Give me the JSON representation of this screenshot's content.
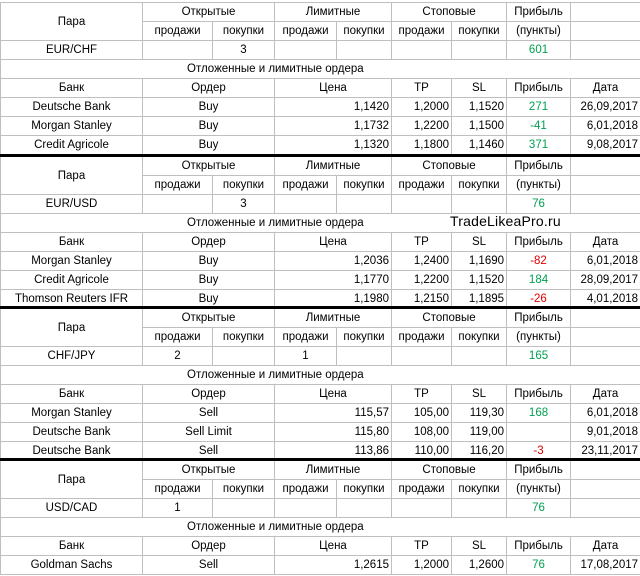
{
  "watermark": "TradeLikeaPro.ru",
  "headers": {
    "pair": "Пара",
    "open": "Открытые",
    "limit": "Лимитные",
    "stop": "Стоповые",
    "profit": "Прибыль",
    "sells": "продажи",
    "buys": "покупки",
    "points": "(пункты)",
    "pending": "Отложенные и лимитные ордера",
    "bank": "Банк",
    "order": "Ордер",
    "price": "Цена",
    "tp": "TP",
    "sl": "SL",
    "date": "Дата"
  },
  "blocks": [
    {
      "pair": "EUR/CHF",
      "open_sells": "",
      "open_buys": "3",
      "limit_sells": "",
      "limit_buys": "",
      "stop_sells": "",
      "stop_buys": "",
      "profit": "601",
      "profit_color": "green",
      "orders": [
        {
          "bank": "Deutsche Bank",
          "order": "Buy",
          "price": "1,1420",
          "tp": "1,2000",
          "sl": "1,1520",
          "profit": "271",
          "color": "green",
          "date": "26,09,2017"
        },
        {
          "bank": "Morgan Stanley",
          "order": "Buy",
          "price": "1,1732",
          "tp": "1,2200",
          "sl": "1,1500",
          "profit": "-41",
          "color": "green",
          "date": "6,01,2018"
        },
        {
          "bank": "Credit Agricole",
          "order": "Buy",
          "price": "1,1320",
          "tp": "1,1800",
          "sl": "1,1460",
          "profit": "371",
          "color": "green",
          "date": "9,08,2017"
        }
      ]
    },
    {
      "pair": "EUR/USD",
      "open_sells": "",
      "open_buys": "3",
      "limit_sells": "",
      "limit_buys": "",
      "stop_sells": "",
      "stop_buys": "",
      "profit": "76",
      "profit_color": "green",
      "orders": [
        {
          "bank": "Morgan Stanley",
          "order": "Buy",
          "price": "1,2036",
          "tp": "1,2400",
          "sl": "1,1690",
          "profit": "-82",
          "color": "red",
          "date": "6,01,2018"
        },
        {
          "bank": "Credit Agricole",
          "order": "Buy",
          "price": "1,1770",
          "tp": "1,2200",
          "sl": "1,1520",
          "profit": "184",
          "color": "green",
          "date": "28,09,2017"
        },
        {
          "bank": "Thomson Reuters IFR",
          "order": "Buy",
          "price": "1,1980",
          "tp": "1,2150",
          "sl": "1,1895",
          "profit": "-26",
          "color": "red",
          "date": "4,01,2018"
        }
      ]
    },
    {
      "pair": "CHF/JPY",
      "open_sells": "2",
      "open_buys": "",
      "limit_sells": "1",
      "limit_buys": "",
      "stop_sells": "",
      "stop_buys": "",
      "profit": "165",
      "profit_color": "green",
      "orders": [
        {
          "bank": "Morgan Stanley",
          "order": "Sell",
          "price": "115,57",
          "tp": "105,00",
          "sl": "119,30",
          "profit": "168",
          "color": "green",
          "date": "6,01,2018"
        },
        {
          "bank": "Deutsche Bank",
          "order": "Sell Limit",
          "price": "115,80",
          "tp": "108,00",
          "sl": "119,00",
          "profit": "",
          "color": "green",
          "date": "9,01,2018"
        },
        {
          "bank": "Deutsche Bank",
          "order": "Sell",
          "price": "113,86",
          "tp": "110,00",
          "sl": "116,20",
          "profit": "-3",
          "color": "red",
          "date": "23,11,2017"
        }
      ]
    },
    {
      "pair": "USD/CAD",
      "open_sells": "1",
      "open_buys": "",
      "limit_sells": "",
      "limit_buys": "",
      "stop_sells": "",
      "stop_buys": "",
      "profit": "76",
      "profit_color": "green",
      "orders": [
        {
          "bank": "Goldman Sachs",
          "order": "Sell",
          "price": "1,2615",
          "tp": "1,2000",
          "sl": "1,2600",
          "profit": "76",
          "color": "green",
          "date": "17,08,2017"
        }
      ]
    }
  ]
}
